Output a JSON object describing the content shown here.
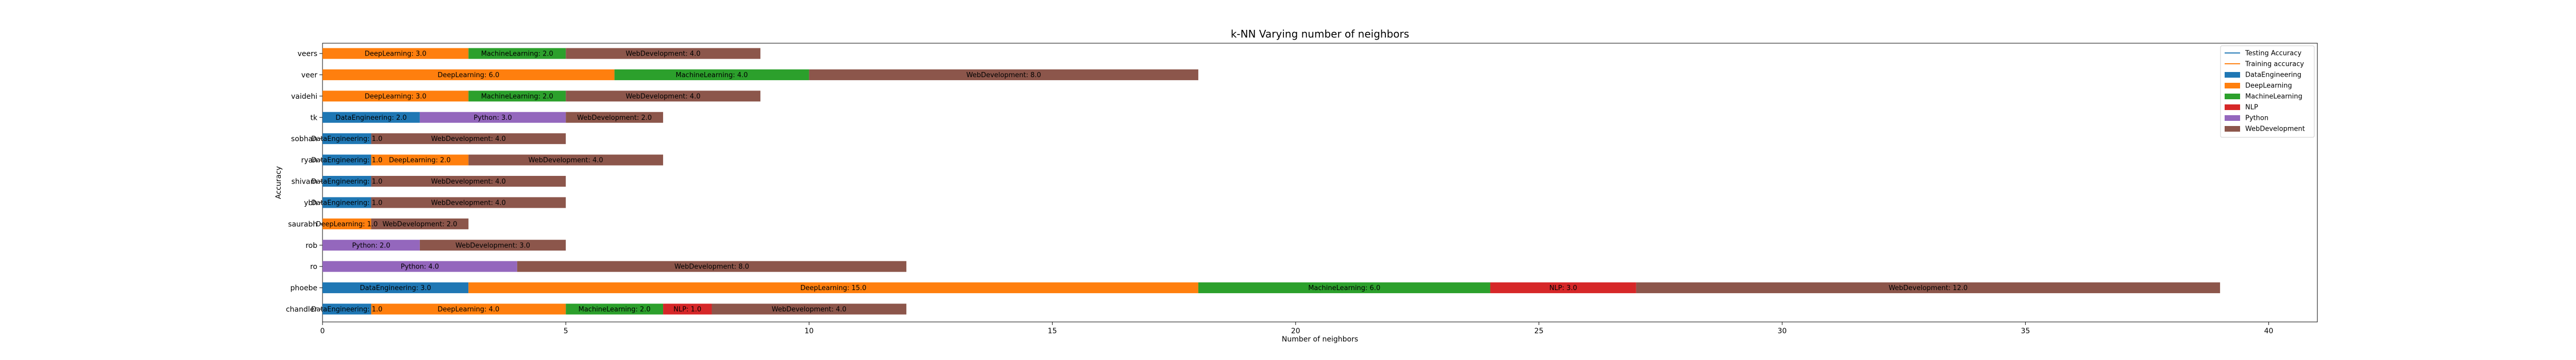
{
  "chart_data": {
    "type": "bar",
    "orientation": "horizontal",
    "stacked": true,
    "title": "k-NN Varying number of neighbors",
    "xlabel": "Number of neighbors",
    "ylabel": "Accuracy",
    "xlim": [
      0,
      41
    ],
    "xticks": [
      0,
      5,
      10,
      15,
      20,
      25,
      30,
      35,
      40
    ],
    "categories": [
      "chandler",
      "phoebe",
      "ro",
      "rob",
      "saurabh",
      "ybh",
      "shivam",
      "ryan",
      "sobhan",
      "tk",
      "vaidehi",
      "veer",
      "veers"
    ],
    "legend_position": "top-right",
    "legend": [
      {
        "label": "Testing Accuracy",
        "kind": "line",
        "color": "#1f77b4"
      },
      {
        "label": "Training accuracy",
        "kind": "line",
        "color": "#ff7f0e"
      },
      {
        "label": "DataEngineering",
        "kind": "patch",
        "color": "#1f77b4"
      },
      {
        "label": "DeepLearning",
        "kind": "patch",
        "color": "#ff7f0e"
      },
      {
        "label": "MachineLearning",
        "kind": "patch",
        "color": "#2ca02c"
      },
      {
        "label": "NLP",
        "kind": "patch",
        "color": "#d62728"
      },
      {
        "label": "Python",
        "kind": "patch",
        "color": "#9467bd"
      },
      {
        "label": "WebDevelopment",
        "kind": "patch",
        "color": "#8c564b"
      }
    ],
    "series": [
      {
        "name": "DataEngineering",
        "color": "#1f77b4",
        "values": [
          1,
          3,
          0,
          0,
          0,
          1,
          1,
          1,
          1,
          2,
          0,
          0,
          0
        ]
      },
      {
        "name": "DeepLearning",
        "color": "#ff7f0e",
        "values": [
          4,
          15,
          0,
          0,
          1,
          0,
          0,
          2,
          0,
          0,
          3,
          6,
          3
        ]
      },
      {
        "name": "MachineLearning",
        "color": "#2ca02c",
        "values": [
          2,
          6,
          0,
          0,
          0,
          0,
          0,
          0,
          0,
          0,
          2,
          4,
          2
        ]
      },
      {
        "name": "NLP",
        "color": "#d62728",
        "values": [
          1,
          3,
          0,
          0,
          0,
          0,
          0,
          0,
          0,
          0,
          0,
          0,
          0
        ]
      },
      {
        "name": "Python",
        "color": "#9467bd",
        "values": [
          0,
          0,
          4,
          2,
          0,
          0,
          0,
          0,
          0,
          3,
          0,
          0,
          0
        ]
      },
      {
        "name": "WebDevelopment",
        "color": "#8c564b",
        "values": [
          4,
          12,
          8,
          3,
          2,
          4,
          4,
          4,
          4,
          2,
          4,
          8,
          4
        ]
      }
    ]
  }
}
